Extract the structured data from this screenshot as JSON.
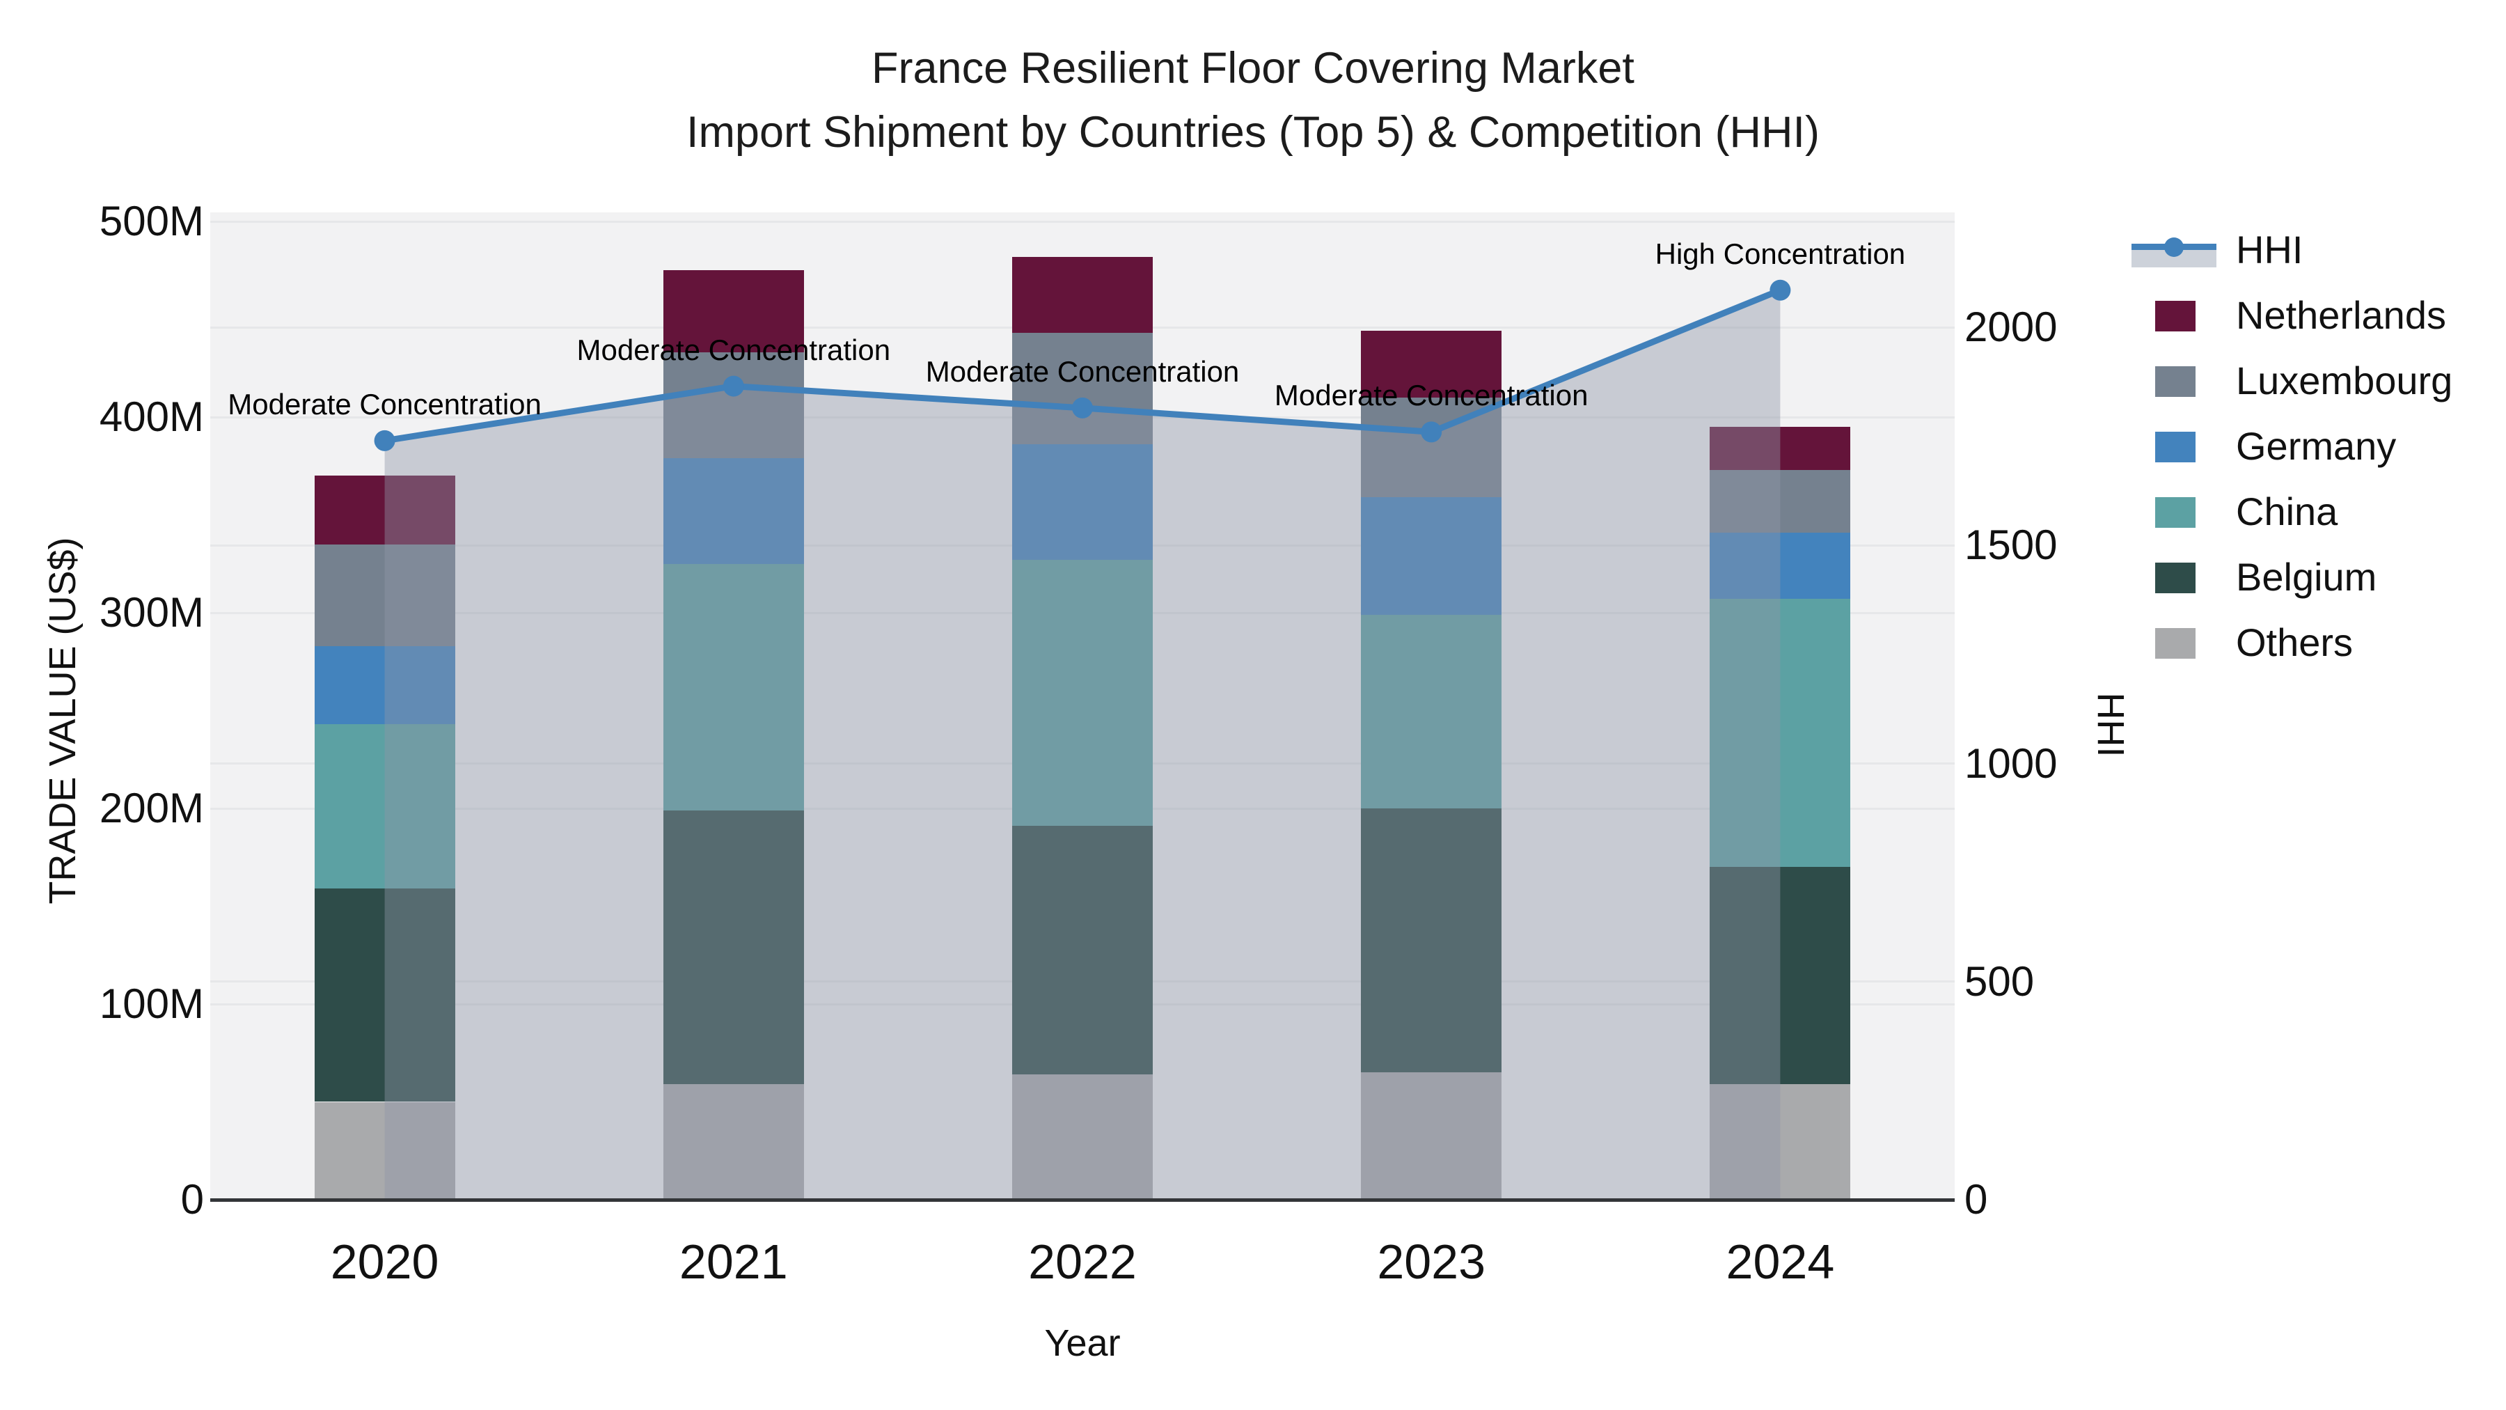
{
  "title": {
    "line1": "France Resilient Floor Covering Market",
    "line2": "Import Shipment by Countries (Top 5) & Competition (HHI)"
  },
  "axes": {
    "x_label": "Year",
    "y_left_label": "TRADE VALUE (US$)",
    "y_right_label": "HHI",
    "y_left_ticks": [
      {
        "label": "0",
        "value": 0
      },
      {
        "label": "100M",
        "value": 100
      },
      {
        "label": "200M",
        "value": 200
      },
      {
        "label": "300M",
        "value": 300
      },
      {
        "label": "400M",
        "value": 400
      },
      {
        "label": "500M",
        "value": 500
      }
    ],
    "y_right_ticks": [
      {
        "label": "0",
        "value": 0
      },
      {
        "label": "500",
        "value": 500
      },
      {
        "label": "1000",
        "value": 1000
      },
      {
        "label": "1500",
        "value": 1500
      },
      {
        "label": "2000",
        "value": 2000
      }
    ]
  },
  "legend": [
    {
      "label": "HHI",
      "type": "line",
      "color": "#4181bb",
      "band_color": "#cdd2da"
    },
    {
      "label": "Netherlands",
      "type": "patch",
      "color": "#64143a"
    },
    {
      "label": "Luxembourg",
      "type": "patch",
      "color": "#75818f"
    },
    {
      "label": "Germany",
      "type": "patch",
      "color": "#4383bd"
    },
    {
      "label": "China",
      "type": "patch",
      "color": "#5ca1a3"
    },
    {
      "label": "Belgium",
      "type": "patch",
      "color": "#2e4c49"
    },
    {
      "label": "Others",
      "type": "patch",
      "color": "#a9aaac"
    }
  ],
  "chart_data": {
    "type": "combo-stacked-bar-line",
    "title": "France Resilient Floor Covering Market — Import Shipment by Countries (Top 5) & Competition (HHI)",
    "categories": [
      "2020",
      "2021",
      "2022",
      "2023",
      "2024"
    ],
    "bar_unit": "M US$ (trade value, left axis)",
    "series": [
      {
        "name": "Others",
        "color": "#a9aaac",
        "values": [
          50,
          59,
          64,
          65,
          59
        ]
      },
      {
        "name": "Belgium",
        "color": "#2e4c49",
        "values": [
          109,
          140,
          127,
          135,
          111
        ]
      },
      {
        "name": "China",
        "color": "#5ca1a3",
        "values": [
          84,
          126,
          136,
          99,
          137
        ]
      },
      {
        "name": "Germany",
        "color": "#4383bd",
        "values": [
          40,
          54,
          59,
          60,
          34
        ]
      },
      {
        "name": "Luxembourg",
        "color": "#75818f",
        "values": [
          52,
          54,
          57,
          51,
          32
        ]
      },
      {
        "name": "Netherlands",
        "color": "#64143a",
        "values": [
          35,
          42,
          39,
          34,
          22
        ]
      }
    ],
    "bar_totals": [
      370,
      475,
      482,
      444,
      395
    ],
    "line": {
      "name": "HHI",
      "axis": "right",
      "values": [
        1740,
        1865,
        1815,
        1760,
        2085
      ],
      "color": "#4181bb",
      "area_fill": "rgba(142,149,168,0.42)"
    },
    "annotations": [
      "Moderate Concentration",
      "Moderate Concentration",
      "Moderate Concentration",
      "Moderate Concentration",
      "High Concentration"
    ],
    "y_left_range": [
      0,
      505
    ],
    "y_right_range": [
      0,
      2265
    ],
    "grid": true,
    "legend_position": "outside-right-top",
    "plot_bg": "#f2f2f3",
    "grid_color": "#e6e7e9",
    "axis_line_color": "#333538"
  }
}
